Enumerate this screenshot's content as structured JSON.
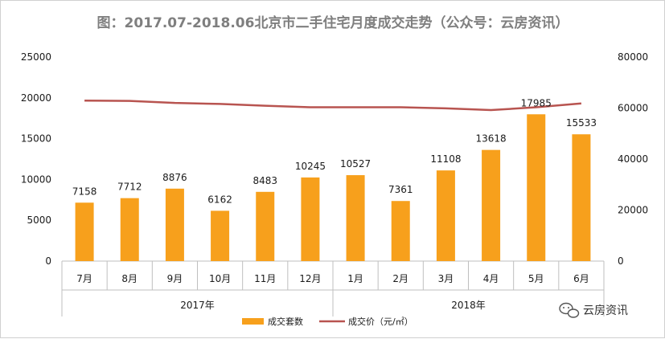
{
  "colors": {
    "bar": "#f7a01c",
    "line": "#b85450",
    "axis": "#bfbfbf",
    "text": "#1a1a1a",
    "title": "#7f7f7f"
  },
  "chart_data": {
    "type": "bar",
    "title": "图：2017.07-2018.06北京市二手住宅月度成交走势（公众号：云房资讯）",
    "categories": [
      "7月",
      "8月",
      "9月",
      "10月",
      "11月",
      "12月",
      "1月",
      "2月",
      "3月",
      "4月",
      "5月",
      "6月"
    ],
    "category_groups": [
      {
        "label": "2017年",
        "count": 6
      },
      {
        "label": "2018年",
        "count": 6
      }
    ],
    "series": [
      {
        "name": "成交套数",
        "type": "bar",
        "axis": "left",
        "values": [
          7158,
          7712,
          8876,
          6162,
          8483,
          10245,
          10527,
          7361,
          11108,
          13618,
          17985,
          15533
        ]
      },
      {
        "name": "成交价（元/㎡）",
        "type": "line",
        "axis": "right",
        "values": [
          62900,
          62800,
          62000,
          61600,
          60900,
          60300,
          60300,
          60300,
          59900,
          59200,
          60300,
          61800
        ]
      }
    ],
    "y_left": {
      "lim": [
        0,
        25000
      ],
      "ticks": [
        "0",
        "5000",
        "10000",
        "15000",
        "20000",
        "25000"
      ]
    },
    "y_right": {
      "lim": [
        0,
        80000
      ],
      "ticks": [
        "0",
        "20000",
        "40000",
        "60000",
        "80000"
      ]
    },
    "grid": false,
    "legend_position": "bottom"
  },
  "watermark": {
    "icon": "wechat-icon",
    "text": "云房资讯"
  }
}
